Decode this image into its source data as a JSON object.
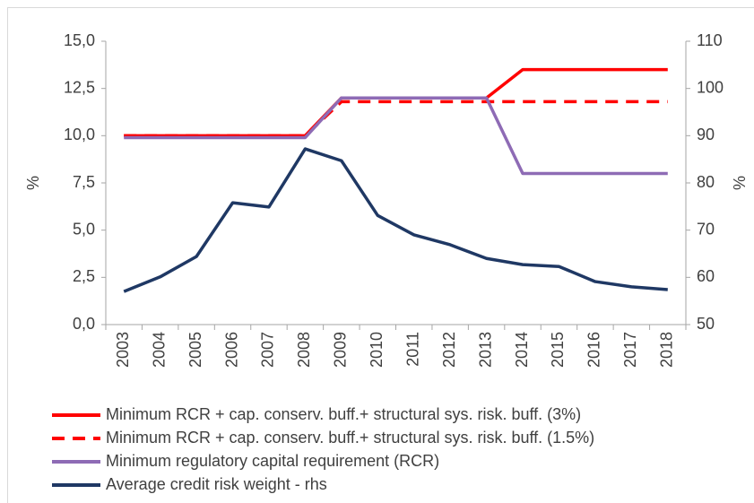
{
  "chart_data": {
    "type": "line",
    "categories": [
      "2003",
      "2004",
      "2005",
      "2006",
      "2007",
      "2008",
      "2009",
      "2010",
      "2011",
      "2012",
      "2013",
      "2014",
      "2015",
      "2016",
      "2017",
      "2018"
    ],
    "ylabel": "%",
    "y2label": "%",
    "ylim": [
      0,
      15
    ],
    "yticks": [
      {
        "value": 0,
        "label": "0,0"
      },
      {
        "value": 2.5,
        "label": "2,5"
      },
      {
        "value": 5,
        "label": "5,0"
      },
      {
        "value": 7.5,
        "label": "7,5"
      },
      {
        "value": 10,
        "label": "10,0"
      },
      {
        "value": 12.5,
        "label": "12,5"
      },
      {
        "value": 15,
        "label": "15,0"
      }
    ],
    "y2lim": [
      50,
      110
    ],
    "y2ticks": [
      50,
      60,
      70,
      80,
      90,
      100,
      110
    ],
    "series": [
      {
        "name": "Minimum RCR + cap. conserv. buff.+ structural sys. risk. buff. (3%)",
        "color": "#ff0000",
        "dash": false,
        "values": [
          10,
          10,
          10,
          10,
          10,
          10,
          12,
          12,
          12,
          12,
          12,
          13.5,
          13.5,
          13.5,
          13.5,
          13.5
        ]
      },
      {
        "name": "Minimum RCR + cap. conserv. buff.+ structural sys. risk. buff. (1.5%)",
        "color": "#ff0000",
        "dash": true,
        "values": [
          10,
          10,
          10,
          10,
          10,
          10,
          11.8,
          11.8,
          11.8,
          11.8,
          11.8,
          11.8,
          11.8,
          11.8,
          11.8,
          11.8
        ]
      },
      {
        "name": "Minimum regulatory capital requirement (RCR)",
        "color": "#8e6bb5",
        "dash": false,
        "values": [
          9.9,
          9.9,
          9.9,
          9.9,
          9.9,
          9.9,
          12,
          12,
          12,
          12,
          12,
          8,
          8,
          8,
          8,
          8
        ]
      },
      {
        "name": "Average credit risk weight - rhs",
        "color": "#1f3864",
        "dash": false,
        "axis": "y2",
        "values": [
          57.0,
          60.1,
          64.4,
          75.8,
          74.9,
          87.2,
          84.7,
          73.1,
          69.0,
          66.9,
          64.0,
          62.7,
          62.3,
          59.1,
          58.0,
          57.4
        ]
      }
    ]
  }
}
